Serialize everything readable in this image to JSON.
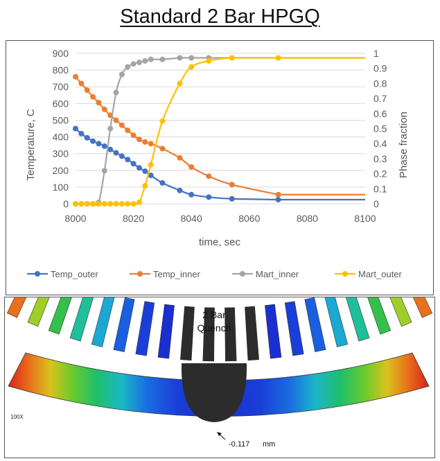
{
  "page_title": "Standard 2 Bar HPGQ",
  "chart_data": {
    "type": "line",
    "title": "",
    "xlabel": "time, sec",
    "ylabel_left": "Temperature, C",
    "ylabel_right": "Phase fraction",
    "xlim": [
      8000,
      8100
    ],
    "ylim_left": [
      0,
      900
    ],
    "ylim_right": [
      0,
      1
    ],
    "x_ticks": [
      "8000",
      "8020",
      "8040",
      "8060",
      "8080",
      "8100"
    ],
    "y_left_ticks": [
      "0",
      "100",
      "200",
      "300",
      "400",
      "500",
      "600",
      "700",
      "800",
      "900"
    ],
    "y_right_ticks": [
      "0",
      "0.1",
      "0.2",
      "0.3",
      "0.4",
      "0.5",
      "0.6",
      "0.7",
      "0.8",
      "0.9",
      "1"
    ],
    "grid": "horizontal",
    "legend_position": "bottom",
    "series": [
      {
        "name": "Temp_outer",
        "axis": "left",
        "color": "#4472C4",
        "x": [
          8000,
          8002,
          8004,
          8006,
          8008,
          8010,
          8012,
          8014,
          8016,
          8018,
          8020,
          8022,
          8024,
          8026,
          8030,
          8036,
          8040,
          8046,
          8054,
          8070
        ],
        "y": [
          450,
          420,
          395,
          375,
          360,
          345,
          325,
          305,
          285,
          265,
          240,
          215,
          195,
          170,
          125,
          80,
          55,
          40,
          30,
          25
        ]
      },
      {
        "name": "Temp_inner",
        "axis": "left",
        "color": "#ED7D31",
        "x": [
          8000,
          8002,
          8004,
          8006,
          8008,
          8010,
          8012,
          8014,
          8016,
          8018,
          8020,
          8022,
          8024,
          8026,
          8030,
          8036,
          8040,
          8046,
          8054,
          8070
        ],
        "y": [
          760,
          720,
          680,
          640,
          605,
          565,
          530,
          500,
          470,
          440,
          410,
          385,
          370,
          360,
          330,
          275,
          220,
          165,
          115,
          55
        ]
      },
      {
        "name": "Mart_inner",
        "axis": "right",
        "color": "#A5A5A5",
        "x": [
          8000,
          8002,
          8004,
          8006,
          8008,
          8010,
          8012,
          8014,
          8016,
          8018,
          8020,
          8022,
          8024,
          8026,
          8030,
          8036,
          8040,
          8046,
          8054
        ],
        "y": [
          0,
          0,
          0,
          0,
          0.01,
          0.22,
          0.5,
          0.74,
          0.86,
          0.91,
          0.93,
          0.94,
          0.95,
          0.96,
          0.96,
          0.97,
          0.97,
          0.97,
          0.97
        ]
      },
      {
        "name": "Mart_outer",
        "axis": "right",
        "color": "#FFC000",
        "x": [
          8000,
          8002,
          8004,
          8006,
          8008,
          8010,
          8012,
          8014,
          8016,
          8018,
          8020,
          8022,
          8024,
          8026,
          8030,
          8036,
          8040,
          8046,
          8054,
          8070
        ],
        "y": [
          0,
          0,
          0,
          0,
          0,
          0,
          0,
          0,
          0,
          0,
          0,
          0.01,
          0.12,
          0.26,
          0.55,
          0.8,
          0.91,
          0.95,
          0.97,
          0.97
        ]
      }
    ]
  },
  "fea_panel": {
    "label_title": "2 Bar",
    "label_subtitle": "Quench",
    "scale_label": "100X",
    "displacement_label": "-0.117",
    "displacement_unit": "mm"
  }
}
